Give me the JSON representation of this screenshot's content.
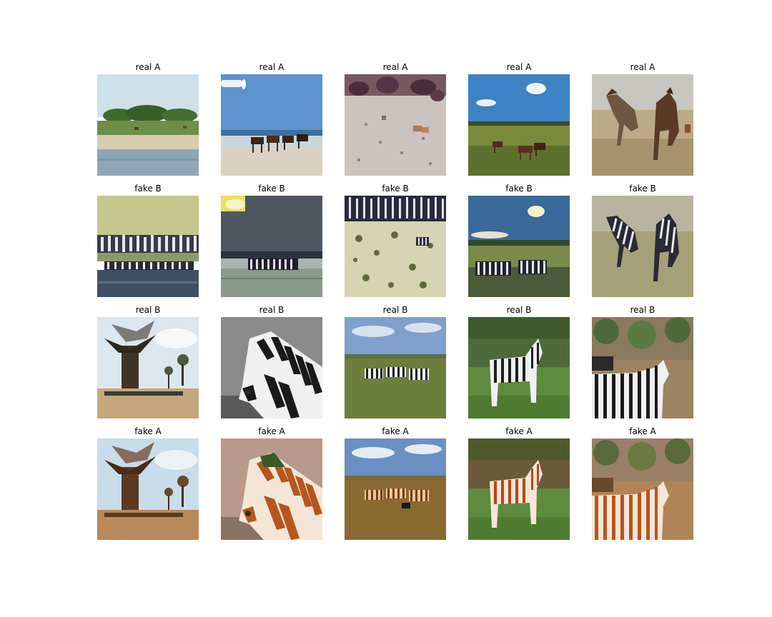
{
  "figure": {
    "rows": [
      {
        "row": "real-a",
        "panels": [
          {
            "title": "real A",
            "scene": "horses grazing by a river bank with trees"
          },
          {
            "title": "real A",
            "scene": "horses walking along an ocean beach"
          },
          {
            "title": "real A",
            "scene": "horses in a snowy scrubland"
          },
          {
            "title": "real A",
            "scene": "horses grazing on a green plain under blue sky"
          },
          {
            "title": "real A",
            "scene": "two brown horses running on dry grass"
          }
        ]
      },
      {
        "row": "fake-b",
        "panels": [
          {
            "title": "fake B",
            "scene": "zebra-striped texture over river bank"
          },
          {
            "title": "fake B",
            "scene": "zebra-striped horses on beach"
          },
          {
            "title": "fake B",
            "scene": "zebra patterns in scrubland"
          },
          {
            "title": "fake B",
            "scene": "zebras grazing on green plain"
          },
          {
            "title": "fake B",
            "scene": "two zebras running on grass"
          }
        ]
      },
      {
        "row": "real-b",
        "panels": [
          {
            "title": "real B",
            "scene": "baobab tree on savanna with zebras"
          },
          {
            "title": "real B",
            "scene": "grayscale zebra close-up"
          },
          {
            "title": "real B",
            "scene": "herd of zebras on grassland"
          },
          {
            "title": "real B",
            "scene": "zebra standing on green grass"
          },
          {
            "title": "real B",
            "scene": "zebras among shrubs"
          }
        ]
      },
      {
        "row": "fake-a",
        "panels": [
          {
            "title": "fake A",
            "scene": "baobab tree on brown savanna"
          },
          {
            "title": "fake A",
            "scene": "brown-striped horse close-up"
          },
          {
            "title": "fake A",
            "scene": "brown horses on grassland"
          },
          {
            "title": "fake A",
            "scene": "brown-striped horse on grass"
          },
          {
            "title": "fake A",
            "scene": "brown horses among shrubs"
          }
        ]
      }
    ]
  },
  "colors": {
    "title_text": "#000000",
    "background": "#ffffff"
  }
}
